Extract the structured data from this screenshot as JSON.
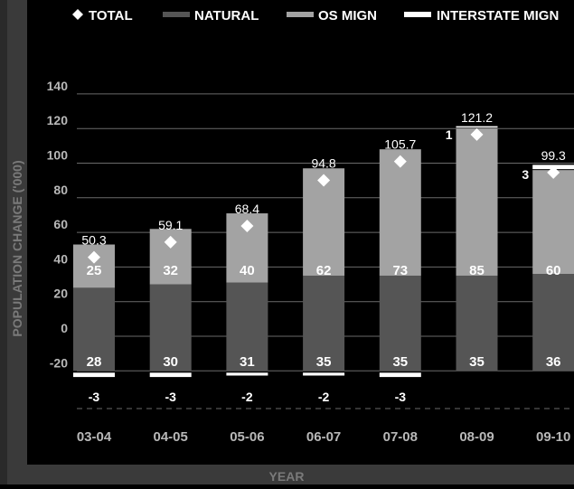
{
  "colors": {
    "background": "#000000",
    "frame": "#3a3a3a",
    "natural": "#555555",
    "os_mign": "#a3a3a3",
    "interstate": "#ffffff",
    "grid": "#6a6a6a",
    "text_light": "#ffffff",
    "text_muted": "#b8b8b8",
    "axis_title": "#7a7a7a"
  },
  "chart_data": {
    "type": "bar",
    "stacked": true,
    "title": "",
    "xlabel": "YEAR",
    "ylabel": "POPULATION CHANGE ('000)",
    "ylim": [
      -20,
      140
    ],
    "yticks": [
      -20,
      0,
      20,
      40,
      60,
      80,
      100,
      120,
      140
    ],
    "grid": true,
    "legend_position": "top",
    "categories": [
      "03-04",
      "04-05",
      "05-06",
      "06-07",
      "07-08",
      "08-09",
      "09-10"
    ],
    "series": [
      {
        "name": "NATURAL",
        "type": "bar",
        "color": "#555555",
        "values": [
          28,
          30,
          31,
          35,
          35,
          35,
          36
        ]
      },
      {
        "name": "OS MIGN",
        "type": "bar",
        "color": "#a3a3a3",
        "values": [
          25,
          32,
          40,
          62,
          73,
          85,
          60
        ]
      },
      {
        "name": "INTERSTATE MIGN",
        "type": "bar",
        "color": "#ffffff",
        "values": [
          -3,
          -3,
          -2,
          -2,
          -3,
          1,
          3
        ]
      },
      {
        "name": "TOTAL",
        "type": "marker",
        "marker": "diamond",
        "values": [
          50.3,
          59.1,
          68.4,
          94.8,
          105.7,
          121.2,
          99.3
        ]
      }
    ],
    "interstate_labels": [
      "-3",
      "-3",
      "-2",
      "-2",
      "-3",
      "1",
      "3"
    ]
  }
}
